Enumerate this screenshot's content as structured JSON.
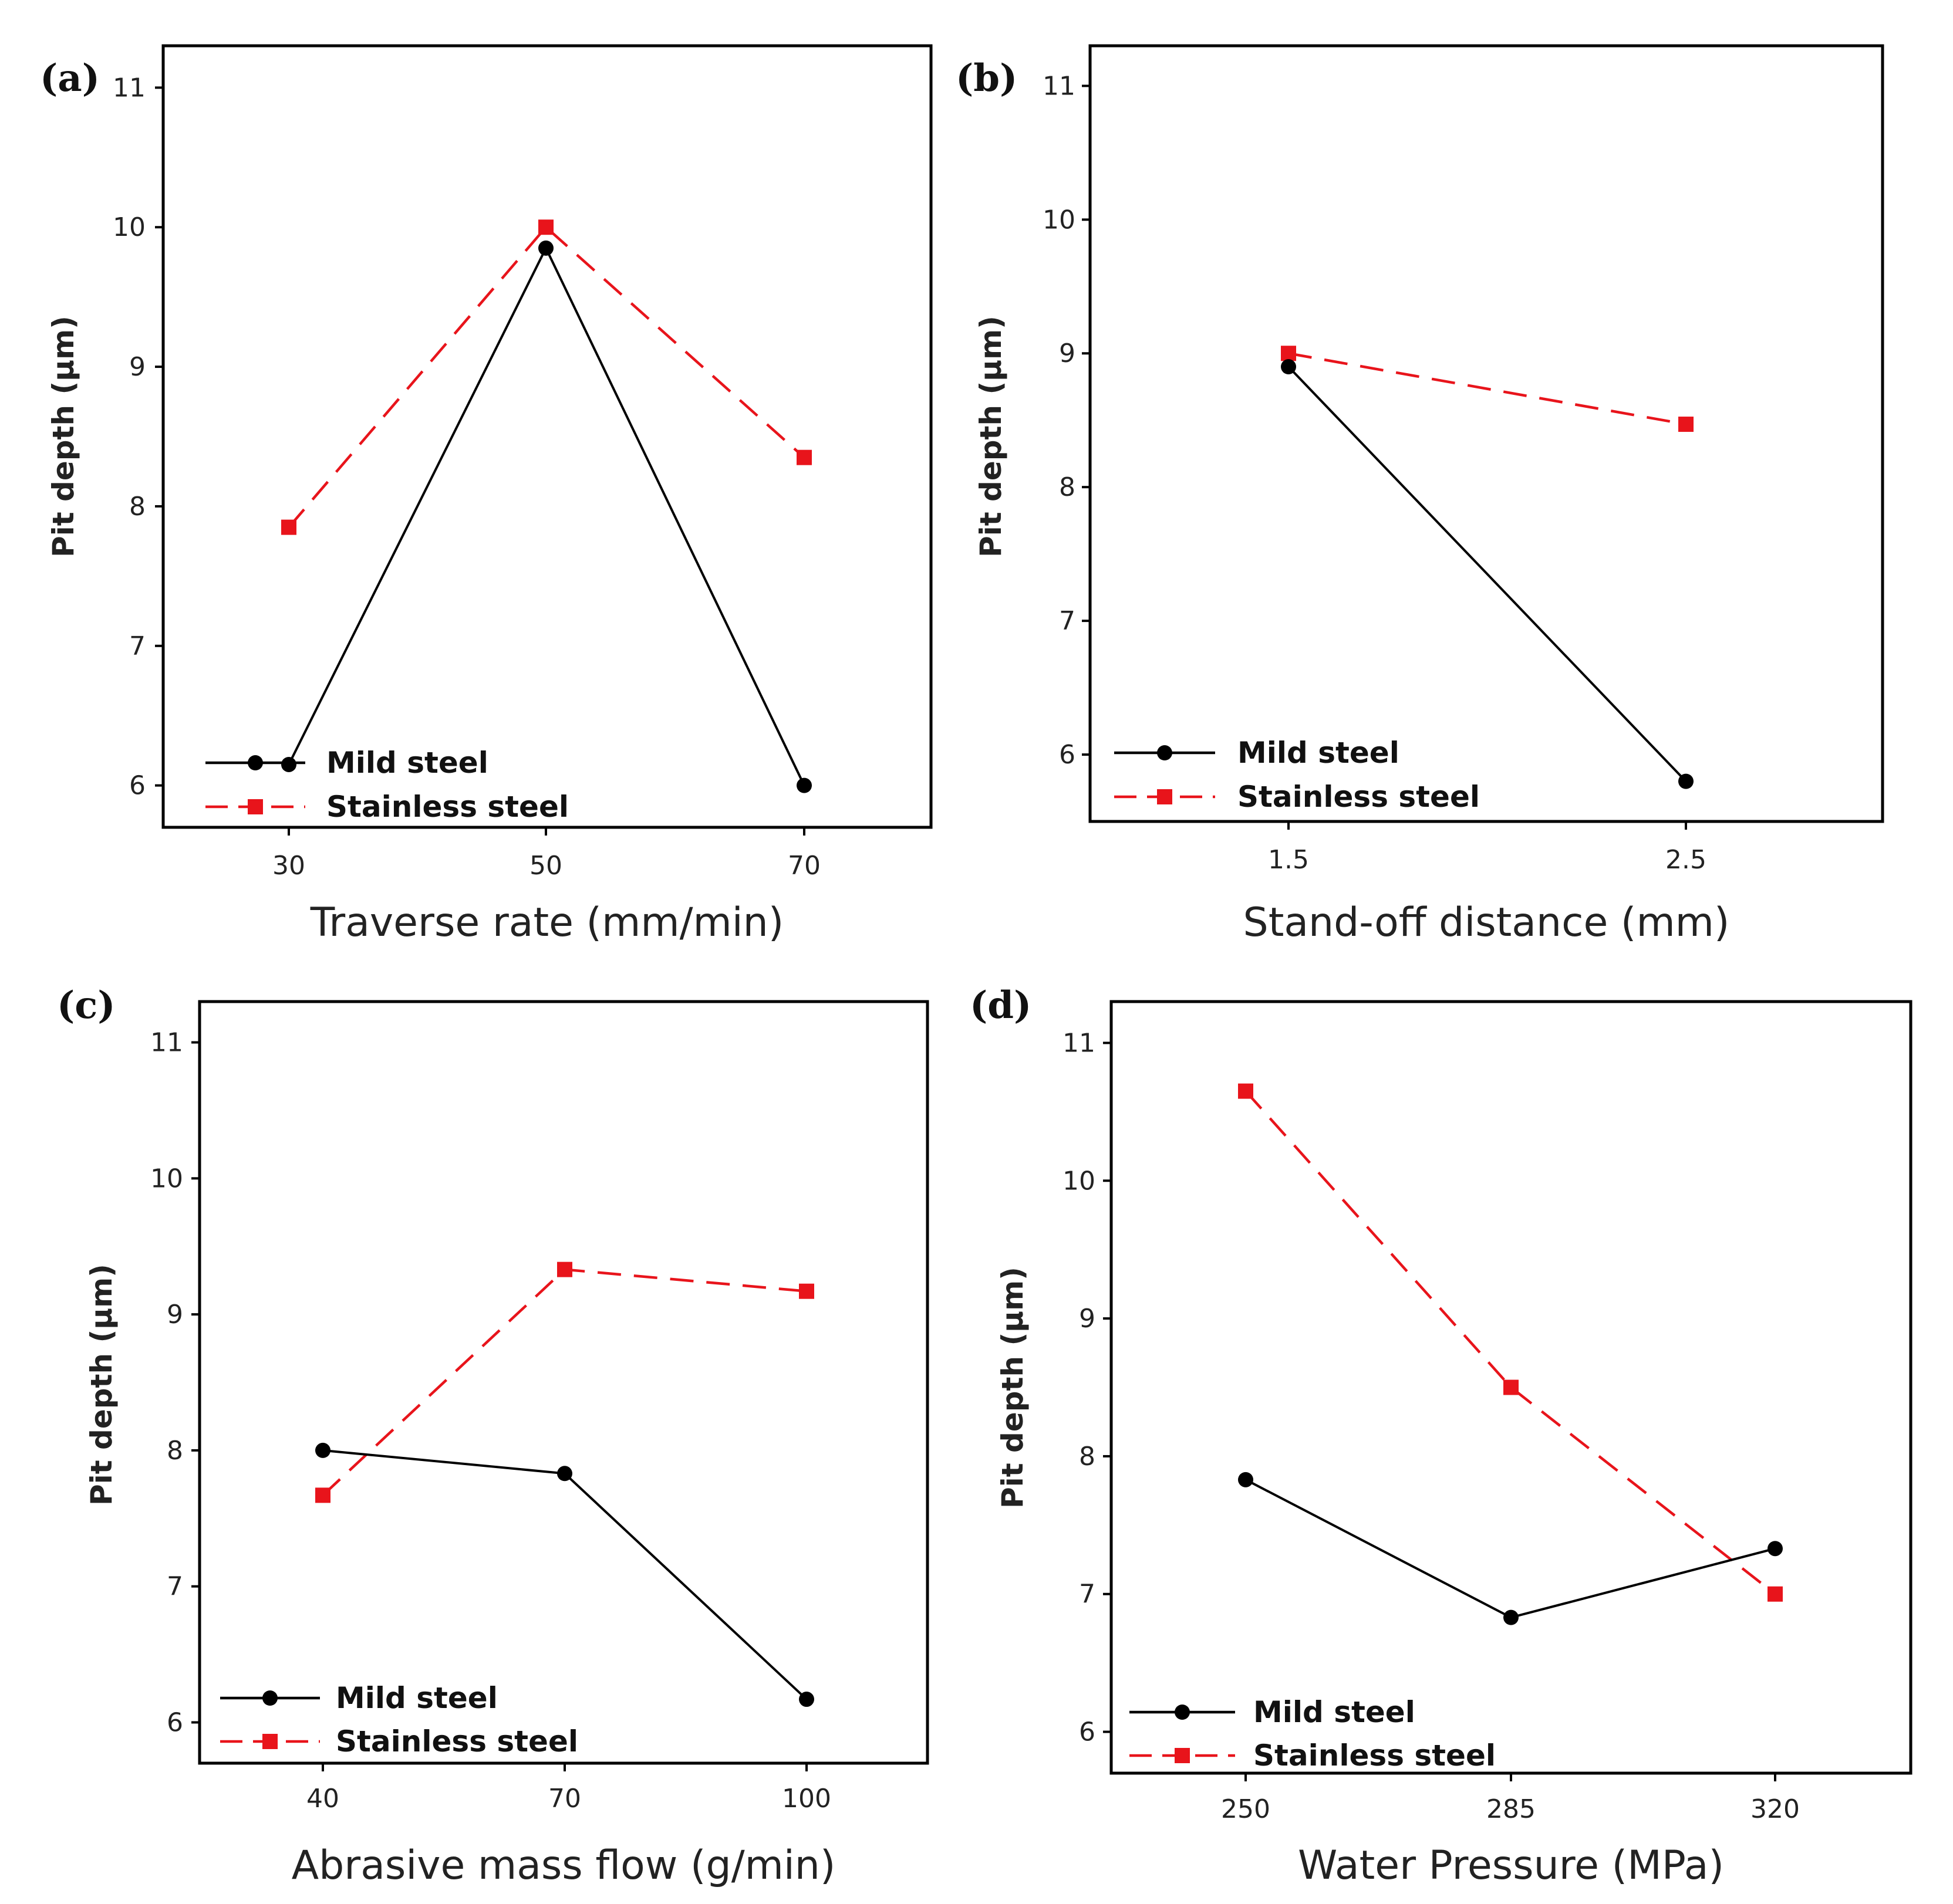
{
  "figure": {
    "colors": {
      "mild_steel": "#000000",
      "stainless_steel": "#e8141b",
      "frame": "#000000",
      "text": "#222222"
    }
  },
  "chart_data": [
    {
      "type": "line",
      "panel": "(a)",
      "xlabel": "Traverse rate (mm/min)",
      "ylabel": "Pit depth (µm)",
      "categories": [
        "30",
        "50",
        "70"
      ],
      "yticks": [
        "6",
        "7",
        "8",
        "9",
        "10",
        "11"
      ],
      "ylim": [
        5.7,
        11.3
      ],
      "legend_position": "bottom-left",
      "series": [
        {
          "name": "Mild steel",
          "style": "solid",
          "marker": "circle",
          "values": [
            6.15,
            9.85,
            6.0
          ]
        },
        {
          "name": "Stainless steel",
          "style": "dashed",
          "marker": "square",
          "values": [
            7.85,
            10.0,
            8.35
          ]
        }
      ]
    },
    {
      "type": "line",
      "panel": "(b)",
      "xlabel": "Stand-off distance (mm)",
      "ylabel": "Pit depth (µm)",
      "categories": [
        "1.5",
        "2.5"
      ],
      "yticks": [
        "6",
        "7",
        "8",
        "9",
        "10",
        "11"
      ],
      "ylim": [
        5.5,
        11.3
      ],
      "legend_position": "bottom-left",
      "series": [
        {
          "name": "Mild steel",
          "style": "solid",
          "marker": "circle",
          "values": [
            8.9,
            5.8
          ]
        },
        {
          "name": "Stainless steel",
          "style": "dashed",
          "marker": "square",
          "values": [
            9.0,
            8.47
          ]
        }
      ]
    },
    {
      "type": "line",
      "panel": "(c)",
      "xlabel": "Abrasive mass flow (g/min)",
      "ylabel": "Pit depth (µm)",
      "categories": [
        "40",
        "70",
        "100"
      ],
      "yticks": [
        "6",
        "7",
        "8",
        "9",
        "10",
        "11"
      ],
      "ylim": [
        5.7,
        11.3
      ],
      "legend_position": "bottom-left",
      "series": [
        {
          "name": "Mild steel",
          "style": "solid",
          "marker": "circle",
          "values": [
            8.0,
            7.83,
            6.17
          ]
        },
        {
          "name": "Stainless steel",
          "style": "dashed",
          "marker": "square",
          "values": [
            7.67,
            9.33,
            9.17
          ]
        }
      ]
    },
    {
      "type": "line",
      "panel": "(d)",
      "xlabel": "Water Pressure (MPa)",
      "ylabel": "Pit depth (µm)",
      "categories": [
        "250",
        "285",
        "320"
      ],
      "yticks": [
        "6",
        "7",
        "8",
        "9",
        "10",
        "11"
      ],
      "ylim": [
        5.7,
        11.3
      ],
      "legend_position": "bottom-left",
      "series": [
        {
          "name": "Mild steel",
          "style": "solid",
          "marker": "circle",
          "values": [
            7.83,
            6.83,
            7.33
          ]
        },
        {
          "name": "Stainless steel",
          "style": "dashed",
          "marker": "square",
          "values": [
            10.65,
            8.5,
            7.0
          ]
        }
      ]
    }
  ]
}
